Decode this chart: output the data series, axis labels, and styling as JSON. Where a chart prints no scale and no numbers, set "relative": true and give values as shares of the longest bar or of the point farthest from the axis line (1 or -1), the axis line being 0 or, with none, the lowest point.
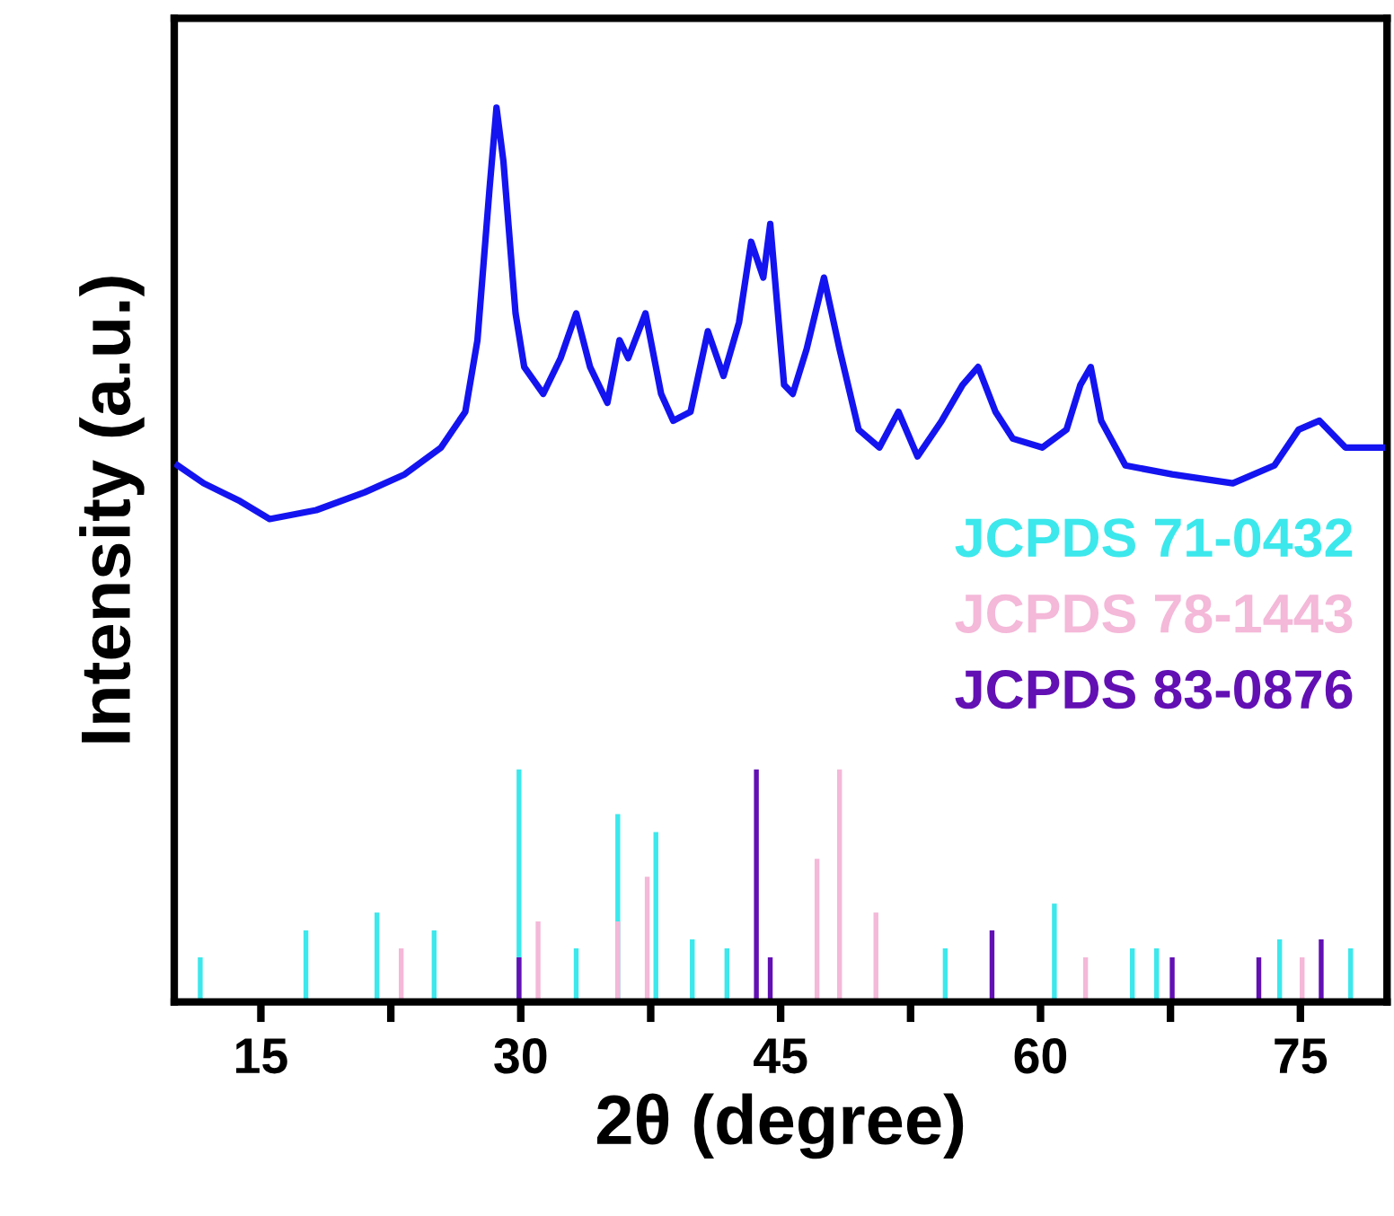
{
  "chart_data": {
    "type": "line",
    "xlabel": "2θ (degree)",
    "ylabel": "Intensity (a.u.)",
    "relative": true,
    "xlim": [
      10,
      80
    ],
    "xticks": [
      15,
      {
        "value": 22.5,
        "label": null
      },
      30,
      {
        "value": 37.5,
        "label": null
      },
      45,
      {
        "value": 52.5,
        "label": null
      },
      60,
      {
        "value": 67.5,
        "label": null
      },
      75
    ],
    "legend": "right",
    "grid": false,
    "series": [
      {
        "color": "#1414f0",
        "x": [
          10.2,
          11.7,
          13.8,
          15.5,
          18.2,
          21.0,
          23.3,
          25.4,
          26.8,
          27.5,
          28.2,
          28.6,
          29.0,
          29.7,
          30.2,
          31.3,
          32.3,
          33.2,
          34.0,
          35.0,
          35.7,
          36.2,
          37.2,
          38.1,
          38.8,
          39.8,
          40.8,
          41.7,
          42.6,
          43.3,
          44.0,
          44.4,
          45.2,
          45.7,
          46.5,
          47.5,
          48.4,
          49.5,
          50.7,
          51.8,
          52.9,
          54.3,
          55.5,
          56.4,
          57.4,
          58.4,
          60.1,
          61.5,
          62.3,
          62.9,
          63.5,
          64.9,
          67.6,
          71.1,
          73.5,
          74.9,
          76.1,
          77.6,
          79.7
        ],
        "values": [
          0.6,
          0.58,
          0.56,
          0.54,
          0.55,
          0.57,
          0.59,
          0.62,
          0.66,
          0.74,
          0.91,
          1.0,
          0.94,
          0.77,
          0.71,
          0.68,
          0.72,
          0.77,
          0.71,
          0.67,
          0.74,
          0.72,
          0.77,
          0.68,
          0.65,
          0.66,
          0.75,
          0.7,
          0.76,
          0.85,
          0.81,
          0.87,
          0.69,
          0.68,
          0.73,
          0.81,
          0.73,
          0.64,
          0.62,
          0.66,
          0.61,
          0.65,
          0.69,
          0.71,
          0.66,
          0.63,
          0.62,
          0.64,
          0.69,
          0.71,
          0.65,
          0.6,
          0.59,
          0.58,
          0.6,
          0.64,
          0.65,
          0.62,
          0.62
        ]
      },
      {
        "type": "bar",
        "name": "JCPDS 71-0432",
        "color": "#3ce8ec",
        "x": [
          11.5,
          17.6,
          21.7,
          25.0,
          29.9,
          33.2,
          35.6,
          37.8,
          39.9,
          41.9,
          54.5,
          60.8,
          65.3,
          66.7,
          73.8,
          77.9
        ],
        "values": [
          0.05,
          0.08,
          0.1,
          0.08,
          0.26,
          0.06,
          0.21,
          0.19,
          0.07,
          0.06,
          0.06,
          0.11,
          0.06,
          0.06,
          0.07,
          0.06
        ]
      },
      {
        "type": "bar",
        "name": "JCPDS 78-1443",
        "color": "#f4b8d8",
        "x": [
          23.1,
          31.0,
          35.6,
          37.3,
          47.1,
          48.4,
          50.5,
          62.6,
          75.1
        ],
        "values": [
          0.06,
          0.09,
          0.09,
          0.14,
          0.16,
          0.26,
          0.1,
          0.05,
          0.05
        ]
      },
      {
        "type": "bar",
        "name": "JCPDS 83-0876",
        "color": "#6210b4",
        "x": [
          29.9,
          43.6,
          44.4,
          57.2,
          67.6,
          72.6,
          76.2
        ],
        "values": [
          0.05,
          0.26,
          0.05,
          0.08,
          0.05,
          0.05,
          0.07
        ]
      }
    ]
  }
}
